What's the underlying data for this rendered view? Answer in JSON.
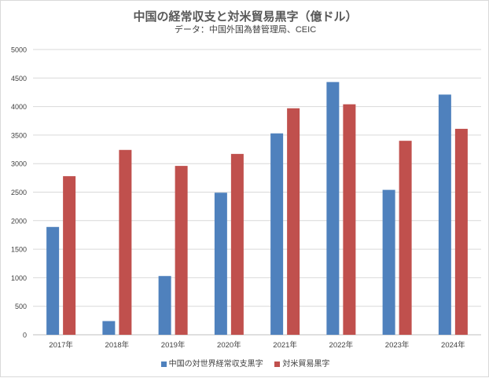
{
  "chart_data": {
    "type": "bar",
    "title": "中国の経常収支と対米貿易黒字（億ドル）",
    "subtitle": "データ：中国外国為替管理局、CEIC",
    "categories": [
      "2017年",
      "2018年",
      "2019年",
      "2020年",
      "2021年",
      "2022年",
      "2023年",
      "2024年"
    ],
    "ylim": [
      0,
      5000
    ],
    "yticks": [
      "0",
      "500",
      "1000",
      "1500",
      "2000",
      "2500",
      "3000",
      "3500",
      "4000",
      "4500",
      "5000"
    ],
    "grid": true,
    "legend_position": "bottom",
    "series": [
      {
        "name": "中国の対世界経常収支黒字",
        "color": "#4f81bd",
        "values": [
          1890,
          240,
          1030,
          2490,
          3530,
          4430,
          2540,
          4210
        ]
      },
      {
        "name": "対米貿易黒字",
        "color": "#c0504d",
        "values": [
          2780,
          3240,
          2960,
          3170,
          3970,
          4040,
          3400,
          3610
        ]
      }
    ]
  }
}
